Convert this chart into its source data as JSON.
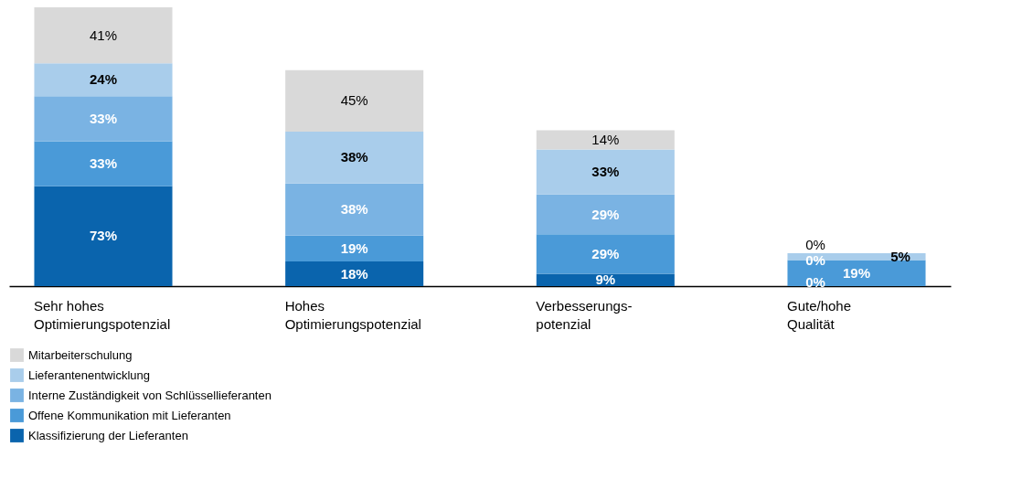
{
  "chart_data": {
    "type": "bar",
    "stacked": true,
    "categories": [
      "Sehr hohes\nOptimierungspotenzial",
      "Hohes\nOptimierungspotenzial",
      "Verbesserungs-\npotenzial",
      "Gute/hohe\nQualität"
    ],
    "series": [
      {
        "name": "Klassifizierung der Lieferanten",
        "color": "#0a64ad",
        "values": [
          73,
          18,
          9,
          0
        ],
        "value_labels": [
          "73%",
          "18%",
          "9%",
          "0%"
        ]
      },
      {
        "name": "Offene Kommunikation mit Lieferanten",
        "color": "#4a9ad8",
        "values": [
          33,
          19,
          29,
          19
        ],
        "value_labels": [
          "33%",
          "19%",
          "29%",
          "19%"
        ]
      },
      {
        "name": "Interne Zuständigkeit von Schlüssellieferanten",
        "color": "#7ab3e3",
        "values": [
          33,
          38,
          29,
          0
        ],
        "value_labels": [
          "33%",
          "38%",
          "29%",
          "0%"
        ]
      },
      {
        "name": "Lieferantenentwicklung",
        "color": "#a9cdeb",
        "values": [
          24,
          38,
          33,
          5
        ],
        "value_labels": [
          "24%",
          "38%",
          "33%",
          "5%"
        ]
      },
      {
        "name": "Mitarbeiterschulung",
        "color": "#d9d9d9",
        "values": [
          41,
          45,
          14,
          0
        ],
        "value_labels": [
          "41%",
          "45%",
          "14%",
          "0%"
        ]
      }
    ],
    "legend": "bottom left"
  }
}
